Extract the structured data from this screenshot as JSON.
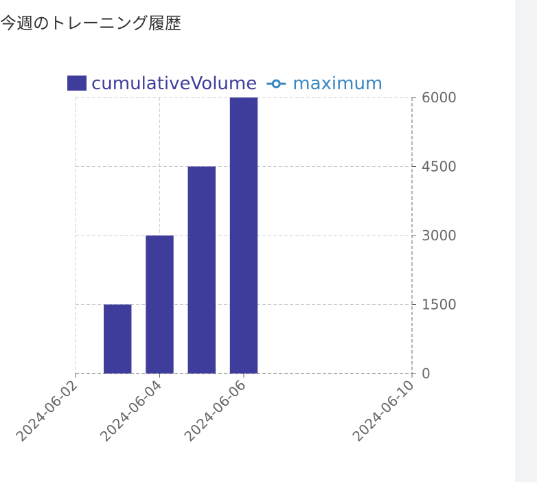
{
  "chart_data": {
    "type": "bar",
    "title": "今週のトレーニング履歴",
    "x": [
      "2024-06-03",
      "2024-06-04",
      "2024-06-05",
      "2024-06-06"
    ],
    "series": [
      {
        "name": "cumulativeVolume",
        "color": "#3f3d9c",
        "values": [
          1500,
          3000,
          4500,
          6000
        ]
      },
      {
        "name": "maximum",
        "color": "#3a86c0",
        "values": [
          null,
          null,
          null,
          null
        ]
      }
    ],
    "xlim": [
      "2024-06-02",
      "2024-06-10"
    ],
    "xticks": [
      "2024-06-02",
      "2024-06-04",
      "2024-06-06",
      "2024-06-10"
    ],
    "ylim": [
      0,
      6000
    ],
    "yticks": [
      0,
      1500,
      3000,
      4500,
      6000
    ],
    "grid": true,
    "legend": "top"
  }
}
